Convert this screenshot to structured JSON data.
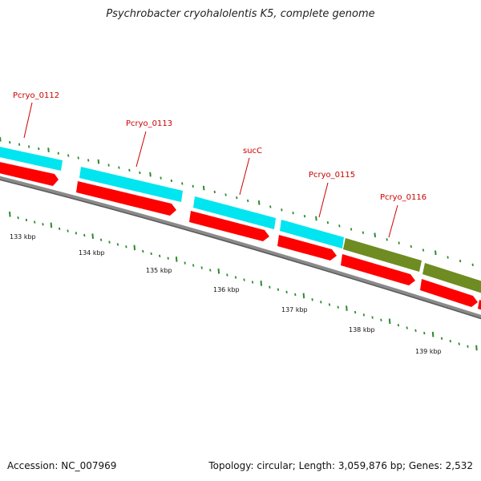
{
  "title": "Psychrobacter cryohalolentis K5, complete genome",
  "footer": {
    "accession": "Accession: NC_007969",
    "summary": "Topology: circular; Length: 3,059,876 bp; Genes: 2,532"
  },
  "colors": {
    "cds": "#ff0000",
    "gene_cyan": "#00e5ef",
    "gene_olive": "#6e8c22",
    "backbone": "#7a7a7a",
    "ticks": "#2f8a2f",
    "label": "#cc0000"
  },
  "map_data": {
    "gene_labels": [
      "Pcryo_0112",
      "Pcryo_0113",
      "sucC",
      "Pcryo_0115",
      "Pcryo_0116"
    ],
    "scale_labels": [
      "133 kbp",
      "134 kbp",
      "135 kbp",
      "136 kbp",
      "137 kbp",
      "138 kbp",
      "139 kbp"
    ]
  }
}
